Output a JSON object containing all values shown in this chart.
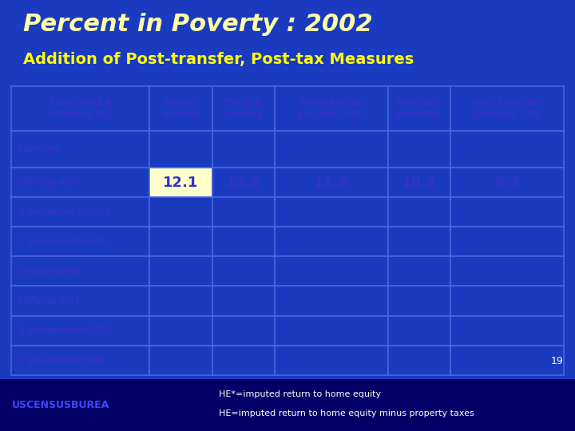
{
  "title": "Percent in Poverty : 2002",
  "subtitle": "Addition of Post-transfer, Post-tax Measures",
  "bg_color": "#1a3bbf",
  "table_bg": "#1a3bbf",
  "cell_bg": "#1a3bbf",
  "highlighted_cell_bg": "#ffffcc",
  "title_color": "#ffffaa",
  "subtitle_color": "#ffff00",
  "cell_text_color": "#3333cc",
  "grid_color": "#3355cc",
  "col_headers": [
    "Threshold &\nInflation Adj",
    "Money\nincome",
    "Pre-tsfr\npre-tax",
    "Pre-transfer\npre-tax +HE*",
    "Post-tsfr\npost-tax",
    "Post-transfer\npost-tax +HE"
  ],
  "row_labels": [
    "Familes",
    "Official-CPI",
    "3 parameter-CPI",
    "3 parameter-RS",
    "Households",
    "Official-CPI",
    "3 parameter-CPI",
    "3 parameter-RS"
  ],
  "data": [
    [
      "",
      "",
      "",
      "",
      ""
    ],
    [
      "12.1",
      "12.8",
      "11.6",
      "10.2",
      "9.4"
    ],
    [
      "",
      "",
      "",
      "",
      ""
    ],
    [
      "",
      "",
      "",
      "",
      ""
    ],
    [
      "",
      "",
      "",
      "",
      ""
    ],
    [
      "",
      "",
      "",
      "",
      ""
    ],
    [
      "",
      "",
      "",
      "",
      ""
    ],
    [
      "",
      "",
      "",
      "",
      ""
    ]
  ],
  "highlighted_row": 1,
  "highlighted_col": 0,
  "footer_left": "USCENSUSBUREA",
  "footer_right1": "HE*=imputed return to home equity",
  "footer_right2": "HE=imputed return to home equity minus property taxes",
  "page_number": "19",
  "footer_bg": "#000080",
  "footer_text_color": "#ffffff",
  "footer_logo_color": "#4444ff"
}
